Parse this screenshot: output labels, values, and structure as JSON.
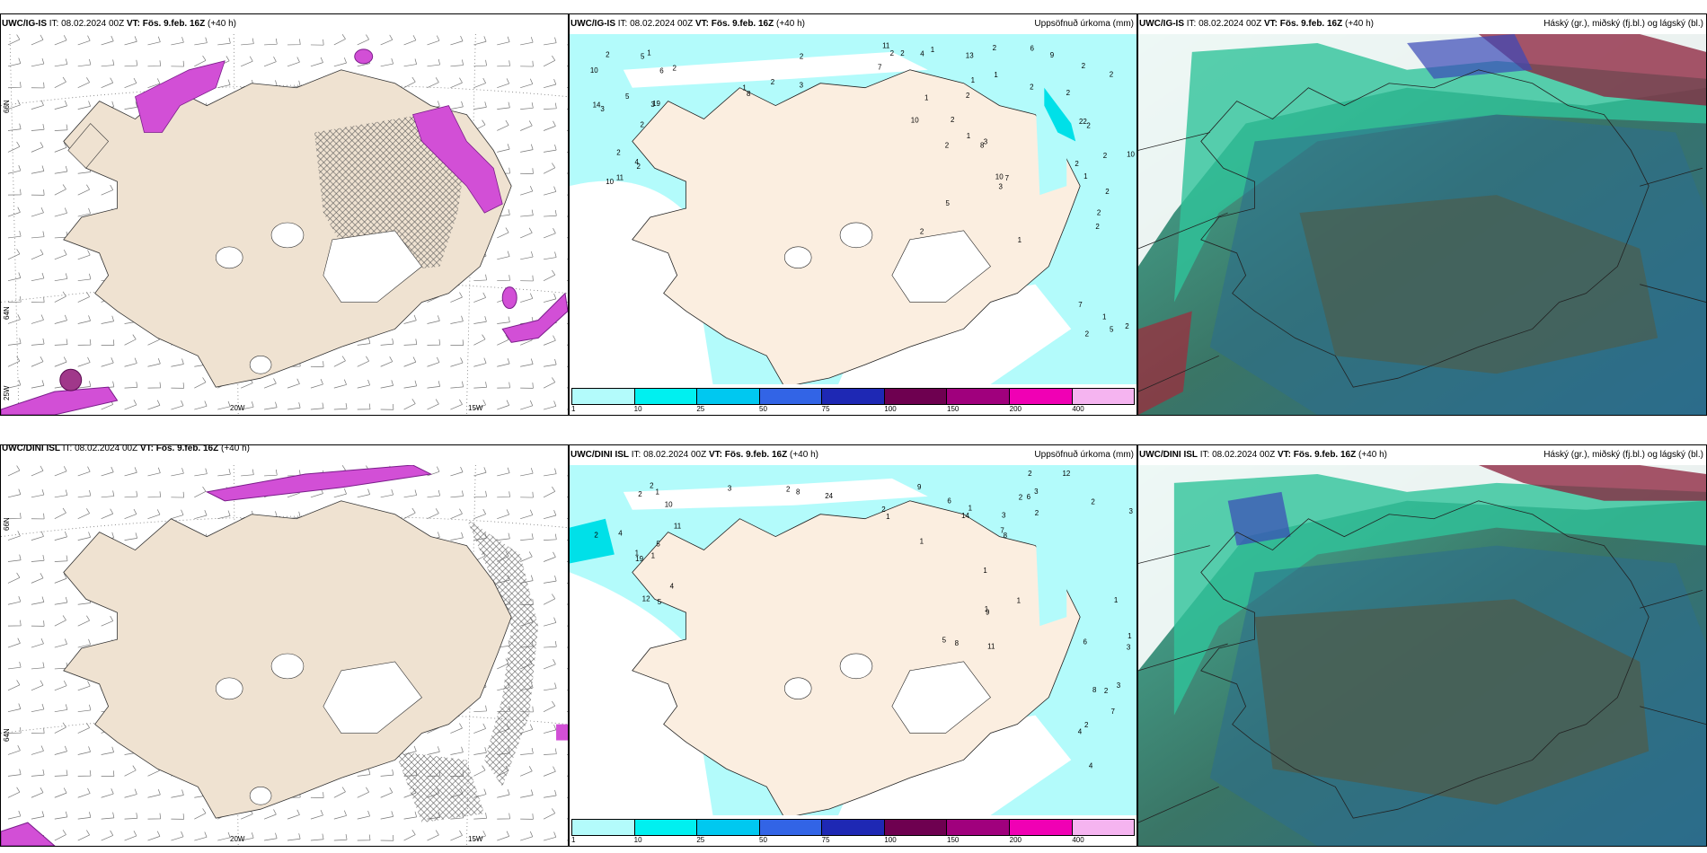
{
  "panels": [
    {
      "id": "tl",
      "model": "UWC/IG-IS",
      "it_label": "IT:",
      "it_value": "08.02.2024 00Z",
      "vt_label": "VT:",
      "vt_value": "Fös. 9.feb. 16Z",
      "lead": "(+40 h)",
      "right_title": "",
      "lon_labels": [
        "20W",
        "15W"
      ],
      "lat_labels": [
        "66N",
        "64N",
        "25W"
      ]
    },
    {
      "id": "tm",
      "model": "UWC/IG-IS",
      "it_label": "IT:",
      "it_value": "08.02.2024 00Z",
      "vt_label": "VT:",
      "vt_value": "Fös. 9.feb. 16Z",
      "lead": "(+40 h)",
      "right_title": "Uppsöfnuð úrkoma (mm)"
    },
    {
      "id": "tr",
      "model": "UWC/IG-IS",
      "it_label": "IT:",
      "it_value": "08.02.2024 00Z",
      "vt_label": "VT:",
      "vt_value": "Fös. 9.feb. 16Z",
      "lead": "(+40 h)",
      "right_title": "Háský (gr.), miðský (fj.bl.) og lágský (bl.)"
    },
    {
      "id": "bl",
      "model": "UWC/DINI ISL",
      "it_label": "IT:",
      "it_value": "08.02.2024 00Z",
      "vt_label": "VT:",
      "vt_value": "Fös. 9.feb. 16Z",
      "lead": "(+40 h)",
      "right_title": "",
      "lon_labels": [
        "20W",
        "15W"
      ],
      "lat_labels": [
        "66N",
        "64N"
      ]
    },
    {
      "id": "bm",
      "model": "UWC/DINI ISL",
      "it_label": "IT:",
      "it_value": "08.02.2024 00Z",
      "vt_label": "VT:",
      "vt_value": "Fös. 9.feb. 16Z",
      "lead": "(+40 h)",
      "right_title": "Uppsöfnuð úrkoma (mm)"
    },
    {
      "id": "br",
      "model": "UWC/DINI ISL",
      "it_label": "IT:",
      "it_value": "08.02.2024 00Z",
      "vt_label": "VT:",
      "vt_value": "Fös. 9.feb. 16Z",
      "lead": "(+40 h)",
      "right_title": "Háský (gr.), miðský (fj.bl.) og lágský (bl.)"
    }
  ],
  "precip_legend": {
    "colors": [
      "#b3fbfb",
      "#00f0f0",
      "#00c8f0",
      "#3264e6",
      "#1e28b4",
      "#6e0050",
      "#a0007d",
      "#f000b4",
      "#f5b4f0"
    ],
    "ticks": [
      "1",
      "10",
      "25",
      "50",
      "75",
      "100",
      "150",
      "200",
      "400"
    ]
  },
  "precip_values": {
    "tm": [
      "2",
      "1",
      "2",
      "1",
      "3",
      "5",
      "2",
      "2",
      "6",
      "8",
      "2",
      "2",
      "3",
      "2",
      "2",
      "13",
      "10",
      "2",
      "2",
      "2",
      "5",
      "2",
      "2",
      "2",
      "19",
      "7",
      "22",
      "11",
      "14",
      "10",
      "10",
      "7",
      "4",
      "1",
      "2",
      "2",
      "2",
      "1",
      "2",
      "1",
      "1",
      "2",
      "1",
      "1",
      "11",
      "10",
      "2",
      "8",
      "2",
      "3",
      "7",
      "9",
      "10",
      "3",
      "5",
      "3",
      "2",
      "4",
      "1",
      "6",
      "5",
      "2",
      "2",
      "2",
      "2",
      "1"
    ],
    "bm": [
      "5",
      "6",
      "2",
      "2",
      "11",
      "11",
      "3",
      "24",
      "19",
      "5",
      "4",
      "3",
      "1",
      "1",
      "1",
      "2",
      "2",
      "2",
      "3",
      "3",
      "4",
      "9",
      "4",
      "3",
      "5",
      "8",
      "6",
      "8",
      "12",
      "14",
      "7",
      "12",
      "10",
      "8",
      "2",
      "1",
      "2",
      "1",
      "1",
      "1",
      "2",
      "1",
      "3",
      "2",
      "1",
      "1",
      "2",
      "2",
      "1",
      "6",
      "8",
      "9",
      "4",
      "7"
    ]
  },
  "wind_colors": {
    "land": "#efe2d1",
    "snow": "#ffffff",
    "magenta": "#d24fd6",
    "ice": "#ffffff"
  },
  "cloud_colors": {
    "high": "#8a8f86",
    "mid": "#2f72a8",
    "low": "#2fc39a",
    "deep": "#3e6a58"
  }
}
